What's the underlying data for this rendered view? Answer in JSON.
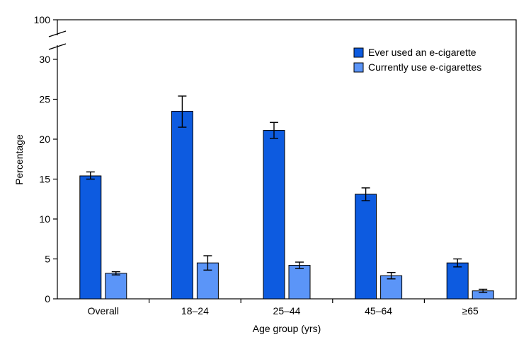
{
  "chart_data": {
    "type": "bar",
    "title": "",
    "xlabel": "Age group (yrs)",
    "ylabel": "Percentage",
    "categories": [
      "Overall",
      "18–24",
      "25–44",
      "45–64",
      "≥65"
    ],
    "series": [
      {
        "name": "Ever used an e-cigarette",
        "color": "#0d5be0",
        "values": [
          15.4,
          23.5,
          21.1,
          13.1,
          4.5
        ],
        "error_low": [
          15.0,
          21.5,
          20.1,
          12.3,
          4.0
        ],
        "error_high": [
          15.9,
          25.4,
          22.1,
          13.9,
          5.0
        ]
      },
      {
        "name": "Currently use e-cigarettes",
        "color": "#5b95f8",
        "values": [
          3.2,
          4.5,
          4.2,
          2.9,
          1.0
        ],
        "error_low": [
          3.0,
          3.6,
          3.8,
          2.5,
          0.8
        ],
        "error_high": [
          3.4,
          5.4,
          4.6,
          3.3,
          1.2
        ]
      }
    ],
    "y_ticks": [
      "0",
      "5",
      "10",
      "15",
      "20",
      "25",
      "30",
      "100"
    ],
    "ylim": [
      0,
      30
    ],
    "axis_break": {
      "top_label": "100"
    },
    "legend_position": "top-right",
    "grid": false
  }
}
